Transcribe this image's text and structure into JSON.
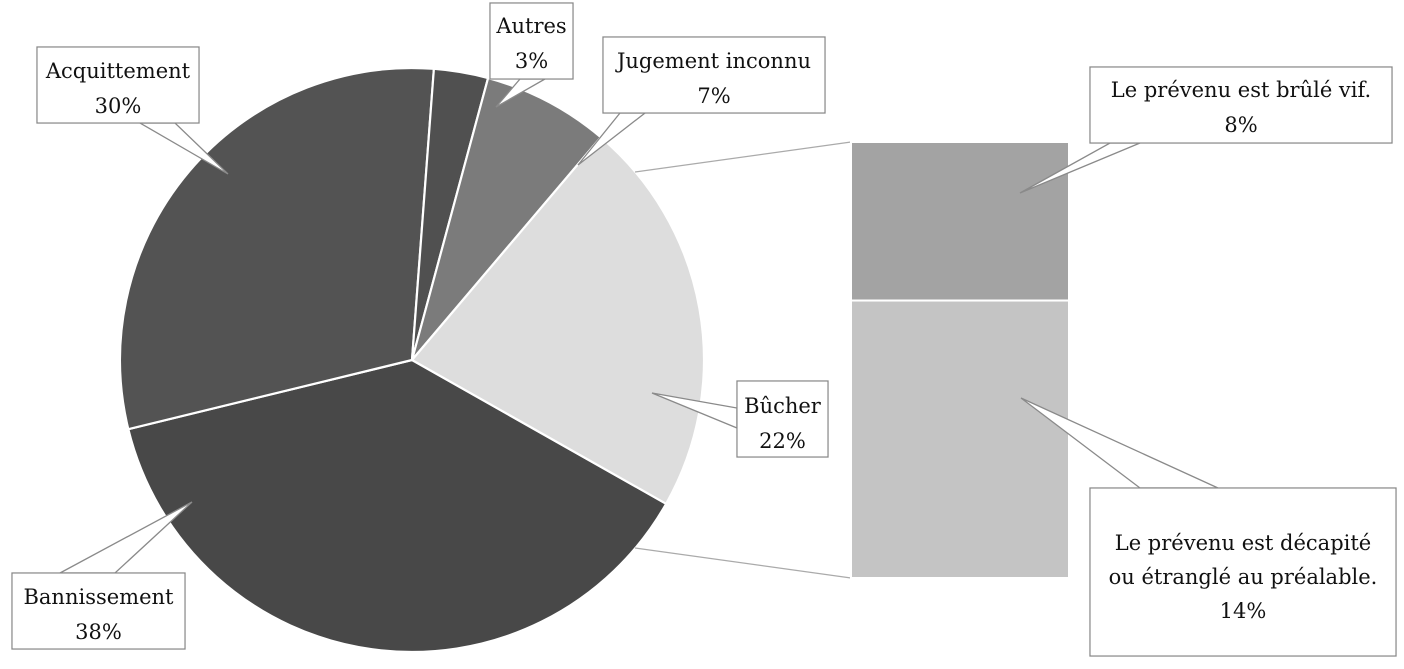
{
  "chart_data": {
    "type": "pie",
    "variant": "bar-of-pie",
    "title": "",
    "slices": [
      {
        "label": "Bannissement",
        "value": 38,
        "value_label": "38%",
        "color": "#484848"
      },
      {
        "label": "Acquittement",
        "value": 30,
        "value_label": "30%",
        "color": "#535353"
      },
      {
        "label": "Autres",
        "value": 3,
        "value_label": "3%",
        "color": "#505050"
      },
      {
        "label": "Jugement inconnu",
        "value": 7,
        "value_label": "7%",
        "color": "#7b7b7b"
      },
      {
        "label": "Bûcher",
        "value": 22,
        "value_label": "22%",
        "color": "#dddddd"
      }
    ],
    "breakdown_of": "Bûcher",
    "breakdown": [
      {
        "label": "Le prévenu est brûlé vif.",
        "value": 8,
        "value_label": "8%",
        "color": "#a3a3a3"
      },
      {
        "label": "Le prévenu est décapité ou étranglé au préalable.",
        "label_lines": [
          "Le prévenu est décapité",
          "ou étranglé au préalable."
        ],
        "value": 14,
        "value_label": "14%",
        "color": "#c4c4c4"
      }
    ],
    "legend": "none",
    "grid": false
  }
}
